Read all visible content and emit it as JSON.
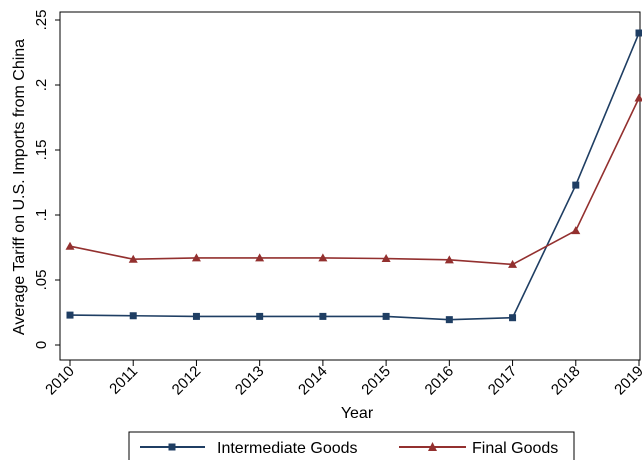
{
  "chart_data": {
    "type": "line",
    "title": "",
    "xlabel": "Year",
    "ylabel": "Average Tariff on U.S. Imports from China",
    "x": [
      2010,
      2011,
      2012,
      2013,
      2014,
      2015,
      2016,
      2017,
      2018,
      2019
    ],
    "x_tick_labels": [
      "2010",
      "2011",
      "2012",
      "2013",
      "2014",
      "2015",
      "2016",
      "2017",
      "2018",
      "2019"
    ],
    "ylim": [
      0,
      0.25
    ],
    "y_ticks": [
      0,
      0.05,
      0.1,
      0.15,
      0.2,
      0.25
    ],
    "y_tick_labels": [
      "0",
      ".05",
      ".1",
      ".15",
      ".2",
      ".25"
    ],
    "grid": false,
    "legend_position": "bottom",
    "series": [
      {
        "name": "Intermediate Goods",
        "marker": "square",
        "color": "#1f3e63",
        "values": [
          0.023,
          0.0225,
          0.022,
          0.022,
          0.022,
          0.022,
          0.0195,
          0.021,
          0.123,
          0.24
        ]
      },
      {
        "name": "Final Goods",
        "marker": "triangle",
        "color": "#93302f",
        "values": [
          0.076,
          0.066,
          0.067,
          0.067,
          0.067,
          0.0665,
          0.0655,
          0.062,
          0.088,
          0.19
        ]
      }
    ]
  }
}
